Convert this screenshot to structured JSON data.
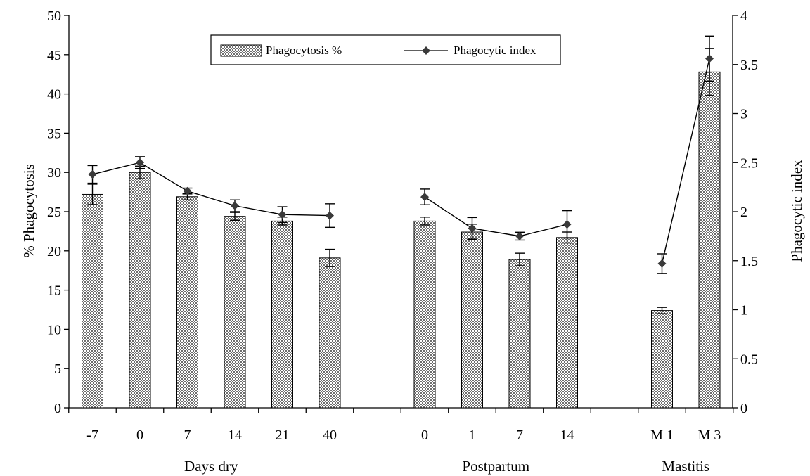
{
  "chart_data": {
    "type": "bar",
    "ylabel": "% Phagocytosis",
    "y2label": "Phagocytic index",
    "ylim": [
      0,
      50
    ],
    "y2lim": [
      0,
      4
    ],
    "yticks": [
      "0",
      "5",
      "10",
      "15",
      "20",
      "25",
      "30",
      "35",
      "40",
      "45",
      "50"
    ],
    "y2ticks": [
      "0",
      "0.5",
      "1",
      "1.5",
      "2",
      "2.5",
      "3",
      "3.5",
      "4"
    ],
    "groups": [
      {
        "label": "Days dry",
        "categories": [
          "-7",
          "0",
          "7",
          "14",
          "21",
          "40"
        ]
      },
      {
        "label": "Postpartum",
        "categories": [
          "0",
          "1",
          "7",
          "14"
        ]
      },
      {
        "label": "Mastitis",
        "categories": [
          "M 1",
          "M 3"
        ]
      }
    ],
    "series": [
      {
        "name": "Phagocytosis %",
        "type": "bar",
        "axis": "left",
        "values": [
          27.2,
          30.0,
          26.9,
          24.4,
          23.8,
          19.1,
          23.8,
          22.4,
          18.9,
          21.7,
          12.4,
          42.8
        ],
        "errors": [
          1.3,
          0.8,
          0.4,
          0.5,
          0.5,
          1.1,
          0.5,
          1.0,
          0.8,
          0.7,
          0.4,
          3.0
        ]
      },
      {
        "name": "Phagocytic index",
        "type": "line",
        "axis": "right",
        "values": [
          2.38,
          2.5,
          2.21,
          2.06,
          1.97,
          1.96,
          2.15,
          1.83,
          1.75,
          1.87,
          1.47,
          3.56
        ],
        "errors": [
          0.09,
          0.06,
          0.03,
          0.06,
          0.08,
          0.12,
          0.08,
          0.11,
          0.04,
          0.14,
          0.1,
          0.23
        ]
      }
    ],
    "legend_position": "top-center",
    "grid": false,
    "colors": {
      "bar_fill": "#808080",
      "bar_pattern": "#ffffff",
      "line": "#000000",
      "marker": "#3a3a3a"
    }
  }
}
